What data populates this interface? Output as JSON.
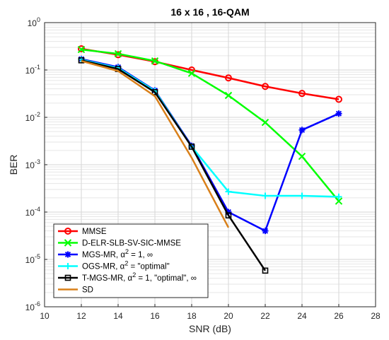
{
  "chart_data": {
    "type": "line",
    "title": "16 x 16 , 16-QAM",
    "xlabel": "SNR (dB)",
    "ylabel": "BER",
    "xlim": [
      10,
      28
    ],
    "ylim": [
      1e-06,
      1
    ],
    "y_scale": "log",
    "grid": true,
    "minor_grid": true,
    "legend_position": "bottom-left",
    "x_ticks": [
      {
        "value": 10,
        "label": "10"
      },
      {
        "value": 12,
        "label": "12"
      },
      {
        "value": 14,
        "label": "14"
      },
      {
        "value": 16,
        "label": "16"
      },
      {
        "value": 18,
        "label": "18"
      },
      {
        "value": 20,
        "label": "20"
      },
      {
        "value": 22,
        "label": "22"
      },
      {
        "value": 24,
        "label": "24"
      },
      {
        "value": 26,
        "label": "26"
      },
      {
        "value": 28,
        "label": "28"
      }
    ],
    "y_ticks": [
      {
        "value": 1,
        "base": "10",
        "exp": "0"
      },
      {
        "value": 0.1,
        "base": "10",
        "exp": "-1"
      },
      {
        "value": 0.01,
        "base": "10",
        "exp": "-2"
      },
      {
        "value": 0.001,
        "base": "10",
        "exp": "-3"
      },
      {
        "value": 0.0001,
        "base": "10",
        "exp": "-4"
      },
      {
        "value": 1e-05,
        "base": "10",
        "exp": "-5"
      },
      {
        "value": 1e-06,
        "base": "10",
        "exp": "-6"
      }
    ],
    "series": [
      {
        "name": "MMSE",
        "color": "#ff0000",
        "marker": "circle",
        "x": [
          12,
          14,
          16,
          18,
          20,
          22,
          24,
          26
        ],
        "y": [
          0.28,
          0.21,
          0.15,
          0.1,
          0.068,
          0.045,
          0.032,
          0.024
        ]
      },
      {
        "name": "D-ELR-SLB-SV-SIC-MMSE",
        "color": "#00ff00",
        "marker": "x",
        "x": [
          12,
          14,
          16,
          18,
          20,
          22,
          24,
          26
        ],
        "y": [
          0.27,
          0.22,
          0.155,
          0.085,
          0.029,
          0.0078,
          0.0015,
          0.00017
        ]
      },
      {
        "name_parts": [
          "MGS-MR, ",
          "α",
          "2",
          " = 1, ∞"
        ],
        "color": "#0000ff",
        "marker": "asterisk",
        "x": [
          12,
          14,
          16,
          18,
          20,
          22,
          24,
          26
        ],
        "y": [
          0.17,
          0.115,
          0.037,
          0.0025,
          0.0001,
          4e-05,
          0.0054,
          0.012
        ]
      },
      {
        "name_parts": [
          "OGS-MR, ",
          "α",
          "2",
          " = \"optimal\""
        ],
        "color": "#00ffff",
        "marker": "plus",
        "x": [
          12,
          14,
          16,
          18,
          20,
          22,
          24,
          26
        ],
        "y": [
          0.165,
          0.11,
          0.036,
          0.0024,
          0.00027,
          0.00022,
          0.00022,
          0.00021
        ]
      },
      {
        "name_parts": [
          "T-MGS-MR, ",
          "α",
          "2",
          " = 1, \"optimal\", ∞"
        ],
        "color": "#000000",
        "marker": "square",
        "x": [
          12,
          14,
          16,
          18,
          20,
          22
        ],
        "y": [
          0.16,
          0.105,
          0.034,
          0.0024,
          8.5e-05,
          5.8e-06
        ]
      },
      {
        "name": "SD",
        "color": "#d9801a",
        "marker": "none",
        "x": [
          12,
          14,
          16,
          18,
          20
        ],
        "y": [
          0.155,
          0.095,
          0.028,
          0.0014,
          4.7e-05
        ]
      }
    ]
  }
}
